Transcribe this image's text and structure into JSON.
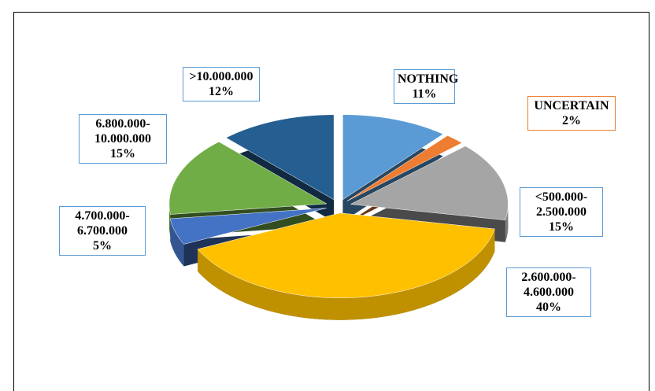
{
  "chart_data": {
    "type": "pie",
    "categories": [
      "NOTHING",
      "UNCERTAIN",
      "<500.000-2.500.000",
      "2.600.000-4.600.000",
      "4.700.000-6.700.000",
      "6.800.000-10.000.000",
      ">10.000.000"
    ],
    "values": [
      11,
      2,
      15,
      40,
      5,
      15,
      12
    ],
    "value_labels": [
      "11%",
      "2%",
      "15%",
      "40%",
      "5%",
      "15%",
      "12%"
    ],
    "colors": [
      "#5b9bd5",
      "#ed7d31",
      "#a5a5a5",
      "#ffc000",
      "#4472c4",
      "#70ad47",
      "#255e91"
    ]
  }
}
